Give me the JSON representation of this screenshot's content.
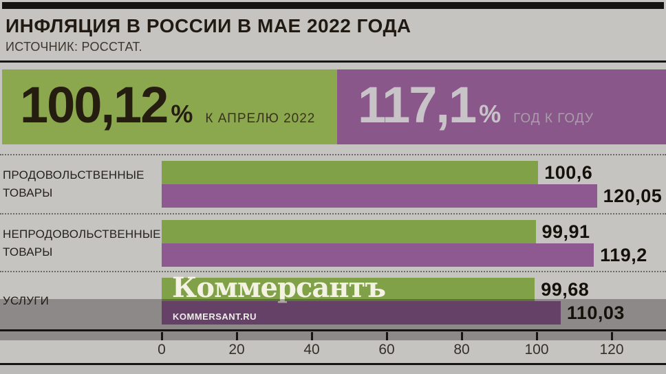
{
  "header": {
    "title": "ИНФЛЯЦИЯ В РОССИИ В МАЕ 2022 ГОДА",
    "source": "ИСТОЧНИК: РОССТАТ."
  },
  "summary": [
    {
      "value": "100,12",
      "unit": "%",
      "label": "К АПРЕЛЮ 2022",
      "color": "#8ca84e"
    },
    {
      "value": "117,1",
      "unit": "%",
      "label": "ГОД К ГОДУ",
      "color": "#8a578b"
    }
  ],
  "chart_data": {
    "type": "bar",
    "orientation": "horizontal",
    "title": "ИНФЛЯЦИЯ В РОССИИ В МАЕ 2022 ГОДА",
    "source": "ИСТОЧНИК: РОССТАТ.",
    "categories": [
      "ПРОДОВОЛЬСТВЕННЫЕ ТОВАРЫ",
      "НЕПРОДОВОЛЬСТВЕННЫЕ ТОВАРЫ",
      "УСЛУГИ"
    ],
    "series": [
      {
        "name": "К АПРЕЛЮ 2022",
        "color": "#80a147",
        "values": [
          100.6,
          99.91,
          99.68
        ],
        "value_labels": [
          "100,6",
          "99,91",
          "99,68"
        ]
      },
      {
        "name": "ГОД К ГОДУ",
        "color": "#8e5890",
        "values": [
          120.05,
          119.2,
          110.03
        ],
        "value_labels": [
          "120,05",
          "119,2",
          "110,03"
        ]
      }
    ],
    "x_axis": {
      "min": 0,
      "max": 134,
      "ticks": [
        0,
        20,
        40,
        60,
        80,
        100,
        120
      ],
      "tick_labels": [
        "0",
        "20",
        "40",
        "60",
        "80",
        "100",
        "120"
      ]
    },
    "grid": false,
    "legend_position": "none",
    "value_labels_shown": true
  },
  "watermark": {
    "logo": "Коммерсантъ",
    "url": "KOMMERSANT.RU"
  },
  "colors": {
    "background": "#c6c4c1",
    "black_bar": "#161412",
    "green_card": "#8ca84e",
    "green_bar": "#80a147",
    "purple_card": "#8a578b",
    "purple_bar": "#8e5890",
    "watermark_band": "rgba(22,18,22,0.33)",
    "title_text": "#201a12",
    "value_text": "#131109"
  }
}
